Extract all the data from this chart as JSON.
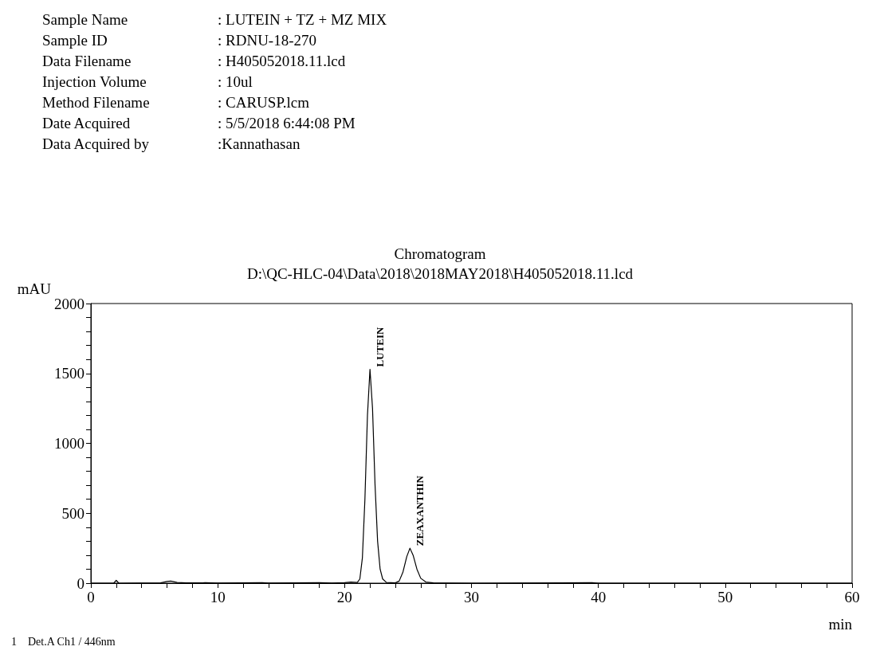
{
  "chart_data": {
    "type": "line",
    "title": "Chromatogram",
    "subtitle": "D:\\QC-HLC-04\\Data\\2018\\2018MAY2018\\H405052018.11.lcd",
    "xlabel": "min",
    "ylabel": "mAU",
    "annotations": [
      "Sample Name : LUTEIN + TZ + MZ MIX",
      "Sample ID : RDNU-18-270",
      "Data Filename : H405052018.11.lcd",
      "Injection Volume : 10ul",
      "Method Filename : CARUSP.lcm",
      "Date Acquired : 5/5/2018 6:44:08 PM",
      "Data Acquired by :Kannathasan",
      {
        "text": "LUTEIN",
        "x": 22.0,
        "y": 1530
      },
      {
        "text": "ZEAXANTHIN",
        "x": 25.15,
        "y": 250
      },
      "1    Det.A Ch1 / 446nm"
    ],
    "x": [
      0,
      1.8,
      2.0,
      2.2,
      5.5,
      6.0,
      6.3,
      6.8,
      7.5,
      9,
      10,
      13.5,
      14,
      18,
      19,
      20,
      20.5,
      21,
      21.2,
      21.4,
      21.6,
      21.8,
      22.0,
      22.2,
      22.4,
      22.6,
      22.8,
      23.0,
      23.3,
      24.0,
      24.3,
      24.6,
      24.9,
      25.15,
      25.4,
      25.7,
      26.0,
      26.4,
      27,
      28,
      30,
      37,
      39.5,
      40,
      50,
      60
    ],
    "series": [
      {
        "color": "#000000",
        "values": [
          0,
          0,
          20,
          0,
          2,
          12,
          15,
          5,
          2,
          3,
          1,
          3,
          1,
          3,
          1,
          4,
          8,
          5,
          30,
          180,
          600,
          1200,
          1530,
          1250,
          700,
          300,
          100,
          30,
          5,
          2,
          15,
          80,
          190,
          250,
          200,
          100,
          35,
          8,
          2,
          1,
          0,
          2,
          3,
          0,
          0,
          0
        ]
      }
    ],
    "xlim": [
      0,
      60
    ],
    "ylim": [
      0,
      2000
    ],
    "xticks": [
      0,
      {
        "value": 2,
        "label": null
      },
      {
        "value": 4,
        "label": null
      },
      {
        "value": 6,
        "label": null
      },
      {
        "value": 8,
        "label": null
      },
      10,
      {
        "value": 12,
        "label": null
      },
      {
        "value": 14,
        "label": null
      },
      {
        "value": 16,
        "label": null
      },
      {
        "value": 18,
        "label": null
      },
      20,
      {
        "value": 22,
        "label": null
      },
      {
        "value": 24,
        "label": null
      },
      {
        "value": 26,
        "label": null
      },
      {
        "value": 28,
        "label": null
      },
      30,
      {
        "value": 32,
        "label": null
      },
      {
        "value": 34,
        "label": null
      },
      {
        "value": 36,
        "label": null
      },
      {
        "value": 38,
        "label": null
      },
      40,
      {
        "value": 42,
        "label": null
      },
      {
        "value": 44,
        "label": null
      },
      {
        "value": 46,
        "label": null
      },
      {
        "value": 48,
        "label": null
      },
      50,
      {
        "value": 52,
        "label": null
      },
      {
        "value": 54,
        "label": null
      },
      {
        "value": 56,
        "label": null
      },
      {
        "value": 58,
        "label": null
      },
      60
    ],
    "yticks": [
      0,
      {
        "value": 100,
        "label": null
      },
      {
        "value": 200,
        "label": null
      },
      {
        "value": 300,
        "label": null
      },
      {
        "value": 400,
        "label": null
      },
      500,
      {
        "value": 600,
        "label": null
      },
      {
        "value": 700,
        "label": null
      },
      {
        "value": 800,
        "label": null
      },
      {
        "value": 900,
        "label": null
      },
      1000,
      {
        "value": 1100,
        "label": null
      },
      {
        "value": 1200,
        "label": null
      },
      {
        "value": 1300,
        "label": null
      },
      {
        "value": 1400,
        "label": null
      },
      1500,
      {
        "value": 1600,
        "label": null
      },
      {
        "value": 1700,
        "label": null
      },
      {
        "value": 1800,
        "label": null
      },
      {
        "value": 1900,
        "label": null
      },
      2000
    ],
    "grid": false,
    "marker": "none",
    "line_style": "solid"
  }
}
